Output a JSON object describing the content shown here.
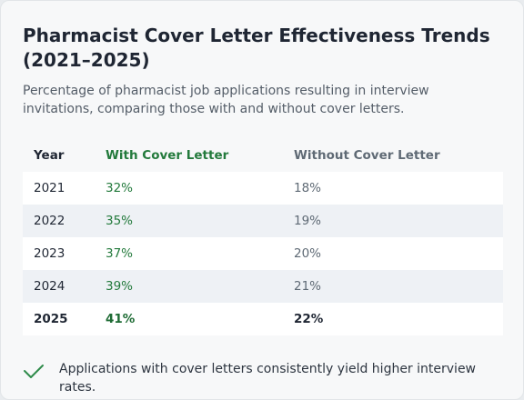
{
  "card": {
    "title": "Pharmacist Cover Letter Effectiveness Trends (2021–2025)",
    "subtitle": "Percentage of pharmacist job applications resulting in interview invitations, comparing those with and without cover letters."
  },
  "chart_data": {
    "type": "table",
    "title": "Pharmacist Cover Letter Effectiveness Trends (2021–2025)",
    "columns": [
      "Year",
      "With Cover Letter",
      "Without Cover Letter"
    ],
    "rows": [
      [
        "2021",
        "32%",
        "18%"
      ],
      [
        "2022",
        "35%",
        "19%"
      ],
      [
        "2023",
        "37%",
        "20%"
      ],
      [
        "2024",
        "39%",
        "21%"
      ],
      [
        "2025",
        "41%",
        "22%"
      ]
    ]
  },
  "footer": {
    "icon": "check-icon",
    "note": "Applications with cover letters consistently yield higher interview rates."
  },
  "colors": {
    "with_accent": "#237a3c",
    "without_text": "#5f6a75",
    "row_tint": "#eef1f5",
    "check": "#2e8b4a"
  }
}
